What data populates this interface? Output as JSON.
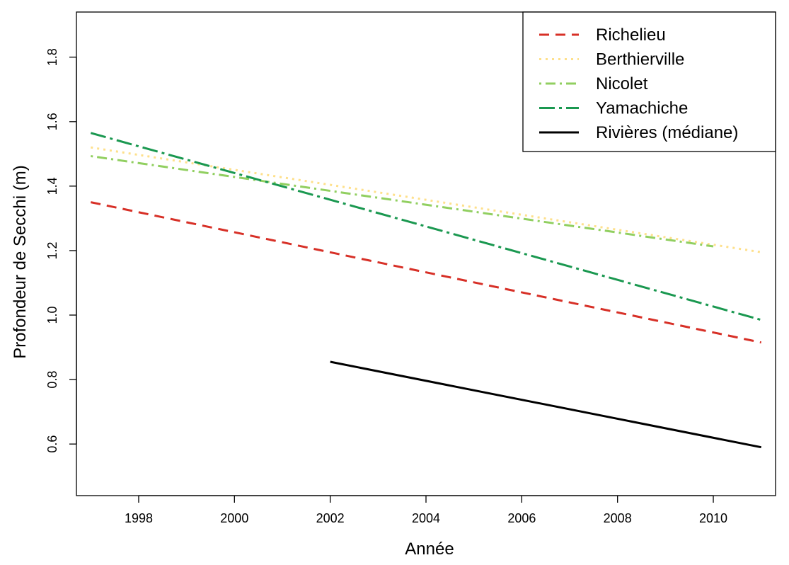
{
  "chart_data": {
    "type": "line",
    "xlabel": "Année",
    "ylabel": "Profondeur de Secchi (m)",
    "xlim": [
      1996.7,
      2011.3
    ],
    "ylim": [
      0.44,
      1.94
    ],
    "x_ticks": [
      1998,
      2000,
      2002,
      2004,
      2006,
      2008,
      2010
    ],
    "x_tick_labels": [
      "1998",
      "2000",
      "2002",
      "2004",
      "2006",
      "2008",
      "2010"
    ],
    "y_ticks": [
      0.6,
      0.8,
      1.0,
      1.2,
      1.4,
      1.6,
      1.8
    ],
    "y_tick_labels": [
      "0.6",
      "0.8",
      "1.0",
      "1.2",
      "1.4",
      "1.6",
      "1.8"
    ],
    "grid": false,
    "legend_position": "top-right",
    "series": [
      {
        "name": "Richelieu",
        "color": "#d73027",
        "dash": "dashed",
        "x": [
          1997,
          2011
        ],
        "y": [
          1.35,
          0.915
        ]
      },
      {
        "name": "Berthierville",
        "color": "#fee08b",
        "dash": "dotted",
        "x": [
          1997,
          2011
        ],
        "y": [
          1.52,
          1.195
        ]
      },
      {
        "name": "Nicolet",
        "color": "#91cf60",
        "dash": "dotdash",
        "x": [
          1997,
          2010
        ],
        "y": [
          1.493,
          1.213
        ]
      },
      {
        "name": "Yamachiche",
        "color": "#1a9850",
        "dash": "longdash-dot",
        "x": [
          1997,
          2011
        ],
        "y": [
          1.565,
          0.985
        ]
      },
      {
        "name": "Rivières (médiane)",
        "color": "#000000",
        "dash": "solid",
        "x": [
          2002,
          2011
        ],
        "y": [
          0.855,
          0.59
        ]
      }
    ]
  }
}
